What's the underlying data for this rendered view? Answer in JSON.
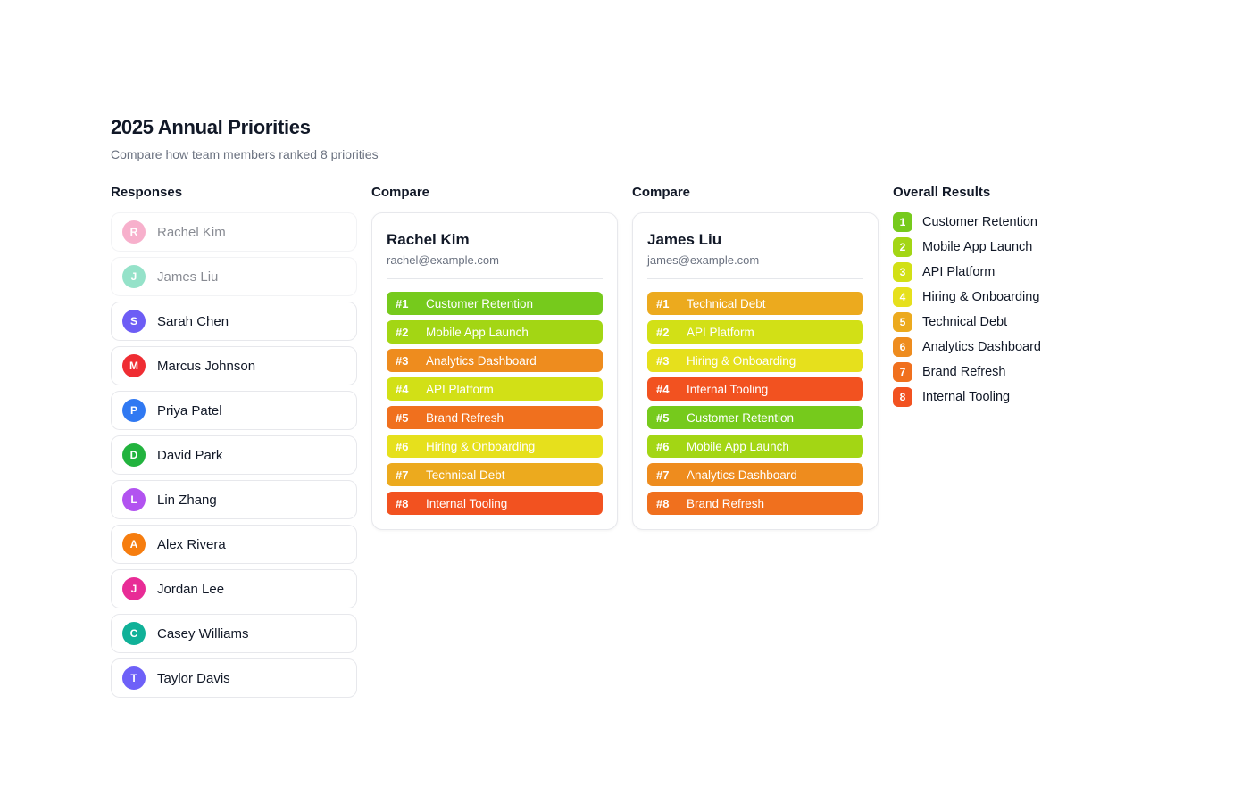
{
  "page": {
    "title": "2025 Annual Priorities",
    "subtitle": "Compare how team members ranked 8 priorities"
  },
  "sections": {
    "responses": "Responses",
    "compare_left": "Compare",
    "compare_right": "Compare",
    "overall": "Overall Results"
  },
  "people": [
    {
      "initial": "R",
      "name": "Rachel Kim",
      "color": "#f0649a",
      "selected": true
    },
    {
      "initial": "J",
      "name": "James Liu",
      "color": "#2ec695",
      "selected": true
    },
    {
      "initial": "S",
      "name": "Sarah Chen",
      "color": "#6d5df5",
      "selected": false
    },
    {
      "initial": "M",
      "name": "Marcus Johnson",
      "color": "#ef2d33",
      "selected": false
    },
    {
      "initial": "P",
      "name": "Priya Patel",
      "color": "#3079f2",
      "selected": false
    },
    {
      "initial": "D",
      "name": "David Park",
      "color": "#22b33e",
      "selected": false
    },
    {
      "initial": "L",
      "name": "Lin Zhang",
      "color": "#b253f0",
      "selected": false
    },
    {
      "initial": "A",
      "name": "Alex Rivera",
      "color": "#f67d0f",
      "selected": false
    },
    {
      "initial": "J",
      "name": "Jordan Lee",
      "color": "#e82c96",
      "selected": false
    },
    {
      "initial": "C",
      "name": "Casey Williams",
      "color": "#10b198",
      "selected": false
    },
    {
      "initial": "T",
      "name": "Taylor Davis",
      "color": "#6e61f8",
      "selected": false
    }
  ],
  "compare_cards": [
    {
      "name": "Rachel Kim",
      "email": "rachel@example.com",
      "rankings": [
        {
          "rank": "#1",
          "label": "Customer Retention",
          "color": "#76ca1c"
        },
        {
          "rank": "#2",
          "label": "Mobile App Launch",
          "color": "#a3d614"
        },
        {
          "rank": "#3",
          "label": "Analytics Dashboard",
          "color": "#ee8c1e"
        },
        {
          "rank": "#4",
          "label": "API Platform",
          "color": "#d2e016"
        },
        {
          "rank": "#5",
          "label": "Brand Refresh",
          "color": "#f0701e"
        },
        {
          "rank": "#6",
          "label": "Hiring & Onboarding",
          "color": "#e6e01c"
        },
        {
          "rank": "#7",
          "label": "Technical Debt",
          "color": "#ecaa1e"
        },
        {
          "rank": "#8",
          "label": "Internal Tooling",
          "color": "#f25220"
        }
      ]
    },
    {
      "name": "James Liu",
      "email": "james@example.com",
      "rankings": [
        {
          "rank": "#1",
          "label": "Technical Debt",
          "color": "#ecaa1e"
        },
        {
          "rank": "#2",
          "label": "API Platform",
          "color": "#d2e016"
        },
        {
          "rank": "#3",
          "label": "Hiring & Onboarding",
          "color": "#e6e01c"
        },
        {
          "rank": "#4",
          "label": "Internal Tooling",
          "color": "#f25220"
        },
        {
          "rank": "#5",
          "label": "Customer Retention",
          "color": "#76ca1c"
        },
        {
          "rank": "#6",
          "label": "Mobile App Launch",
          "color": "#a3d614"
        },
        {
          "rank": "#7",
          "label": "Analytics Dashboard",
          "color": "#ee8c1e"
        },
        {
          "rank": "#8",
          "label": "Brand Refresh",
          "color": "#f0701e"
        }
      ]
    }
  ],
  "overall_results": [
    {
      "rank": "1",
      "label": "Customer Retention",
      "color": "#76ca1c"
    },
    {
      "rank": "2",
      "label": "Mobile App Launch",
      "color": "#a3d614"
    },
    {
      "rank": "3",
      "label": "API Platform",
      "color": "#d2e016"
    },
    {
      "rank": "4",
      "label": "Hiring & Onboarding",
      "color": "#e6e01c"
    },
    {
      "rank": "5",
      "label": "Technical Debt",
      "color": "#ecaa1e"
    },
    {
      "rank": "6",
      "label": "Analytics Dashboard",
      "color": "#ee8c1e"
    },
    {
      "rank": "7",
      "label": "Brand Refresh",
      "color": "#f0701e"
    },
    {
      "rank": "8",
      "label": "Internal Tooling",
      "color": "#f25220"
    }
  ]
}
